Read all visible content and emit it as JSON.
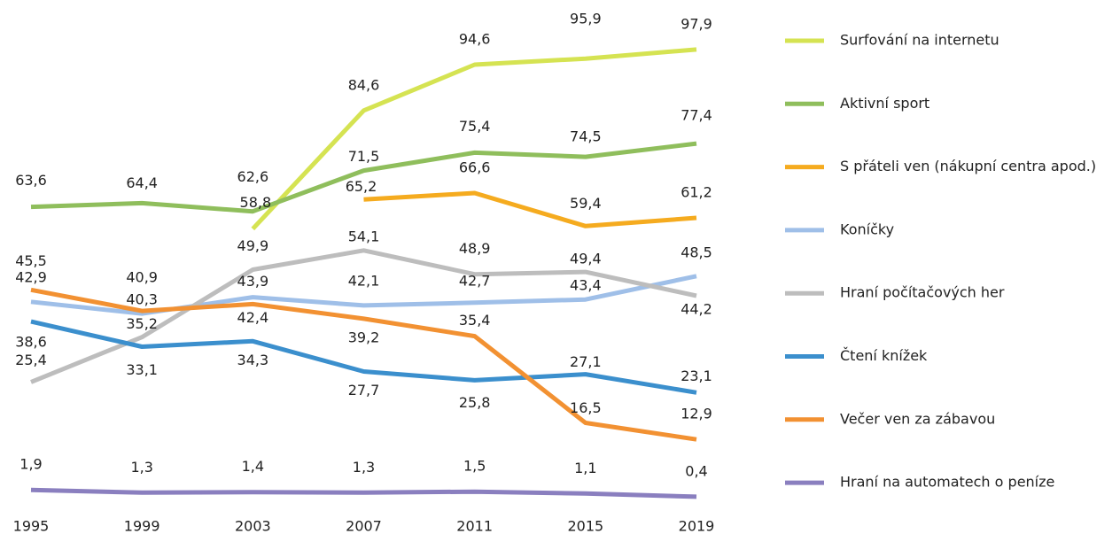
{
  "chart_data": {
    "type": "line",
    "x": [
      "1995",
      "1999",
      "2003",
      "2007",
      "2011",
      "2015",
      "2019"
    ],
    "ylim": [
      0,
      100
    ],
    "series": [
      {
        "name": "Surfování na internetu",
        "color": "#d5e352",
        "values": [
          null,
          null,
          58.8,
          84.6,
          94.6,
          95.9,
          97.9
        ],
        "value_labels": [
          null,
          null,
          "58,8",
          "84,6",
          "94,6",
          "95,9",
          "97,9"
        ]
      },
      {
        "name": "Aktivní sport",
        "color": "#8fbe5c",
        "values": [
          63.6,
          64.4,
          62.6,
          71.5,
          75.4,
          74.5,
          77.4
        ],
        "value_labels": [
          "63,6",
          "64,4",
          "62,6",
          "71,5",
          "75,4",
          "74,5",
          "77,4"
        ]
      },
      {
        "name": "S přáteli ven (nákupní centra apod.)",
        "color": "#f5ab1f",
        "values": [
          null,
          null,
          null,
          65.2,
          66.6,
          59.4,
          61.2
        ],
        "value_labels": [
          null,
          null,
          null,
          "65,2",
          "66,6",
          "59,4",
          "61,2"
        ]
      },
      {
        "name": "Koníčky",
        "color": "#9fbfe8",
        "values": [
          42.9,
          40.3,
          43.9,
          42.1,
          42.7,
          43.4,
          48.5
        ],
        "value_labels": [
          "42,9",
          "40,3",
          "43,9",
          "42,1",
          "42,7",
          "43,4",
          "48,5"
        ]
      },
      {
        "name": "Hraní počítačových her",
        "color": "#bdbdbd",
        "values": [
          25.4,
          35.2,
          49.9,
          54.1,
          48.9,
          49.4,
          44.2
        ],
        "value_labels": [
          "25,4",
          "35,2",
          "49,9",
          "54,1",
          "48,9",
          "49,4",
          "44,2"
        ]
      },
      {
        "name": "Čtení knížek",
        "color": "#3b8fcd",
        "values": [
          38.6,
          33.1,
          34.3,
          27.7,
          25.8,
          27.1,
          23.1
        ],
        "value_labels": [
          "38,6",
          "33,1",
          "34,3",
          "27,7",
          "25,8",
          "27,1",
          "23,1"
        ]
      },
      {
        "name": "Večer ven za zábavou",
        "color": "#f29132",
        "values": [
          45.5,
          40.9,
          42.4,
          39.2,
          35.4,
          16.5,
          12.9
        ],
        "value_labels": [
          "45,5",
          "40,9",
          "42,4",
          "39,2",
          "35,4",
          "16,5",
          "12,9"
        ]
      },
      {
        "name": "Hraní na automatech o peníze",
        "color": "#8a7fbf",
        "values": [
          1.9,
          1.3,
          1.4,
          1.3,
          1.5,
          1.1,
          0.4
        ],
        "value_labels": [
          "1,9",
          "1,3",
          "1,4",
          "1,3",
          "1,5",
          "1,1",
          "0,4"
        ]
      }
    ]
  }
}
